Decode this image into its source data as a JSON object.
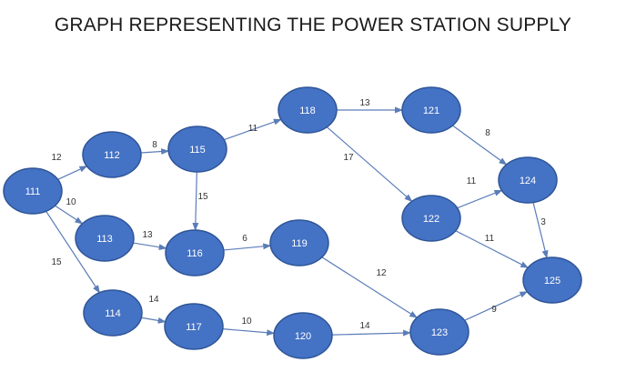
{
  "title": "GRAPH REPRESENTING THE POWER STATION SUPPLY",
  "colors": {
    "node_fill": "#4472C4",
    "node_stroke": "#2F5597",
    "edge": "#5B7DB8",
    "text": "#333333"
  },
  "nodes": [
    {
      "id": "111",
      "label": "111"
    },
    {
      "id": "112",
      "label": "112"
    },
    {
      "id": "113",
      "label": "113"
    },
    {
      "id": "114",
      "label": "114"
    },
    {
      "id": "115",
      "label": "115"
    },
    {
      "id": "116",
      "label": "116"
    },
    {
      "id": "117",
      "label": "117"
    },
    {
      "id": "118",
      "label": "118"
    },
    {
      "id": "119",
      "label": "119"
    },
    {
      "id": "120",
      "label": "120"
    },
    {
      "id": "121",
      "label": "121"
    },
    {
      "id": "122",
      "label": "122"
    },
    {
      "id": "123",
      "label": "123"
    },
    {
      "id": "124",
      "label": "124"
    },
    {
      "id": "125",
      "label": "125"
    }
  ],
  "edges": [
    {
      "from": "111",
      "to": "112",
      "weight": "12"
    },
    {
      "from": "111",
      "to": "113",
      "weight": "10"
    },
    {
      "from": "111",
      "to": "114",
      "weight": "15"
    },
    {
      "from": "112",
      "to": "115",
      "weight": "8"
    },
    {
      "from": "113",
      "to": "116",
      "weight": "13"
    },
    {
      "from": "114",
      "to": "117",
      "weight": "14"
    },
    {
      "from": "115",
      "to": "118",
      "weight": "11"
    },
    {
      "from": "115",
      "to": "116",
      "weight": "15"
    },
    {
      "from": "116",
      "to": "119",
      "weight": "6"
    },
    {
      "from": "117",
      "to": "120",
      "weight": "10"
    },
    {
      "from": "118",
      "to": "121",
      "weight": "13"
    },
    {
      "from": "118",
      "to": "122",
      "weight": "17"
    },
    {
      "from": "119",
      "to": "123",
      "weight": "12"
    },
    {
      "from": "120",
      "to": "123",
      "weight": "14"
    },
    {
      "from": "121",
      "to": "124",
      "weight": "8"
    },
    {
      "from": "122",
      "to": "124",
      "weight": "11"
    },
    {
      "from": "122",
      "to": "125",
      "weight": "11"
    },
    {
      "from": "124",
      "to": "125",
      "weight": "3"
    },
    {
      "from": "123",
      "to": "125",
      "weight": "9"
    }
  ]
}
